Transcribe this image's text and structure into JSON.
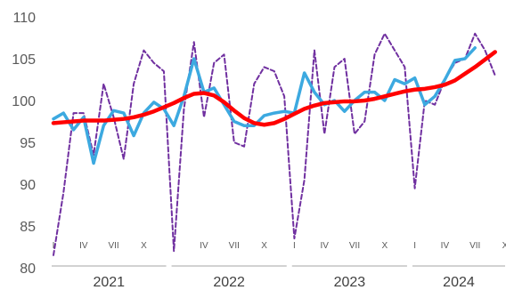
{
  "chart_data": {
    "type": "line",
    "title": "",
    "xlabel": "",
    "ylabel": "",
    "ylim": [
      80,
      110
    ],
    "yticks": [
      80,
      85,
      90,
      95,
      100,
      105,
      110
    ],
    "grid": false,
    "legend": "none",
    "month_labels": [
      "I",
      "IV",
      "VII",
      "X"
    ],
    "years": [
      "2021",
      "2022",
      "2023",
      "2024"
    ],
    "months_per_year": [
      12,
      12,
      12,
      10
    ],
    "series": [
      {
        "color": "#7030a0",
        "style": "dashed",
        "values": [
          81.5,
          89,
          98.5,
          98.5,
          93.5,
          102,
          98,
          93,
          102,
          106,
          104.5,
          103.5,
          82,
          99,
          107,
          98,
          104.5,
          105.5,
          95,
          94.5,
          102,
          104,
          103.5,
          100.5,
          83.5,
          90.5,
          106,
          96,
          104,
          105,
          96,
          97.5,
          105.5,
          108,
          106,
          104,
          89.5,
          100,
          99.5,
          102.5,
          104.5,
          105,
          108,
          106,
          103
        ]
      },
      {
        "color": "#3ca9e0",
        "style": "solid",
        "values": [
          97.8,
          98.5,
          96.5,
          98,
          92.5,
          97,
          98.8,
          98.5,
          95.8,
          98.5,
          99.8,
          99,
          97,
          100.5,
          105,
          101,
          101.5,
          99.5,
          97.5,
          97,
          97,
          98.2,
          98.5,
          98.7,
          98.5,
          103.3,
          101,
          99.5,
          100,
          98.7,
          100,
          101,
          101,
          100,
          102.5,
          102,
          102.7,
          99.5,
          100.5,
          102.5,
          104.8,
          105,
          106.3
        ]
      },
      {
        "color": "#ff0000",
        "style": "solid",
        "values": [
          97.3,
          97.4,
          97.5,
          97.6,
          97.6,
          97.6,
          97.7,
          97.8,
          98.0,
          98.3,
          98.7,
          99.2,
          99.7,
          100.3,
          100.8,
          100.9,
          100.6,
          99.8,
          98.8,
          97.9,
          97.3,
          97.1,
          97.3,
          97.8,
          98.4,
          99.0,
          99.4,
          99.7,
          99.8,
          99.9,
          99.9,
          100.0,
          100.2,
          100.5,
          100.8,
          101.1,
          101.3,
          101.4,
          101.6,
          101.9,
          102.4,
          103.2,
          104.0,
          104.9,
          105.8
        ]
      }
    ]
  }
}
